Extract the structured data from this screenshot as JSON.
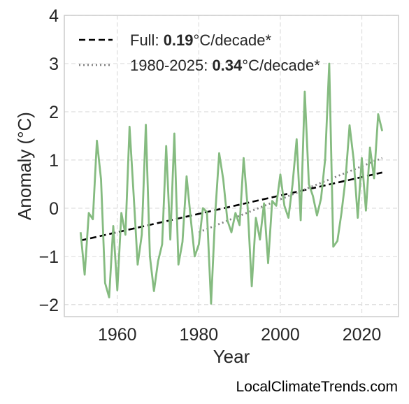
{
  "chart_data": {
    "type": "line",
    "xlabel": "Year",
    "ylabel": "Anomaly (°C)",
    "xlim": [
      1947,
      2029
    ],
    "ylim": [
      -2.25,
      4.0
    ],
    "xticks": [
      1960,
      1980,
      2000,
      2020
    ],
    "yticks": [
      -2,
      -1,
      0,
      1,
      2,
      3,
      4
    ],
    "grid": true,
    "legend_position": "top-left",
    "colors": {
      "series": "#85bb80",
      "full_trend": "#000000",
      "recent_trend": "#808080",
      "grid": "#dddddd",
      "frame": "#cccccc"
    },
    "series": [
      {
        "x": [
          1951,
          1952,
          1953,
          1954,
          1955,
          1956,
          1957,
          1958,
          1959,
          1960,
          1961,
          1962,
          1963,
          1964,
          1965,
          1966,
          1967,
          1968,
          1969,
          1970,
          1971,
          1972,
          1973,
          1974,
          1975,
          1976,
          1977,
          1978,
          1979,
          1980,
          1981,
          1982,
          1983,
          1984,
          1985,
          1986,
          1987,
          1988,
          1989,
          1990,
          1991,
          1992,
          1993,
          1994,
          1995,
          1996,
          1997,
          1998,
          1999,
          2000,
          2001,
          2002,
          2003,
          2004,
          2005,
          2006,
          2007,
          2008,
          2009,
          2010,
          2011,
          2012,
          2013,
          2014,
          2015,
          2016,
          2017,
          2018,
          2019,
          2020,
          2021,
          2022,
          2023,
          2024,
          2025
        ],
        "y": [
          -0.5,
          -1.38,
          -0.1,
          -0.23,
          1.4,
          0.6,
          -1.55,
          -1.85,
          -0.37,
          -1.7,
          -0.1,
          -0.55,
          1.69,
          0.29,
          -1.17,
          -0.55,
          1.73,
          -1.0,
          -1.72,
          -1.1,
          -0.75,
          1.29,
          -0.65,
          1.55,
          -1.17,
          -0.7,
          0.66,
          -0.2,
          -1.0,
          -0.75,
          0.0,
          -0.08,
          -1.98,
          -0.15,
          1.14,
          0.6,
          -0.25,
          -0.5,
          -0.1,
          -0.35,
          1.04,
          0.0,
          -1.62,
          -0.2,
          -0.65,
          0.1,
          -1.14,
          0.15,
          0.05,
          0.7,
          0.05,
          -0.2,
          0.49,
          1.43,
          -0.25,
          2.42,
          0.5,
          0.25,
          -0.15,
          0.2,
          1.02,
          3.0,
          -0.8,
          -0.68,
          -0.1,
          0.6,
          1.72,
          1.0,
          -0.2,
          1.04,
          -0.05,
          1.26,
          0.62,
          1.95,
          1.6
        ]
      }
    ],
    "trends": [
      {
        "style": "dashed",
        "x": [
          1951,
          2025
        ],
        "y": [
          -0.67,
          0.74
        ]
      },
      {
        "style": "dotted",
        "x": [
          1980,
          2025
        ],
        "y": [
          -0.5,
          1.04
        ]
      }
    ],
    "legend": [
      {
        "prefix": "Full: ",
        "value": "0.19",
        "suffix": "°C/decade*"
      },
      {
        "prefix": "1980-2025: ",
        "value": "0.34",
        "suffix": "°C/decade*"
      }
    ]
  },
  "watermark": "LocalClimateTrends.com"
}
